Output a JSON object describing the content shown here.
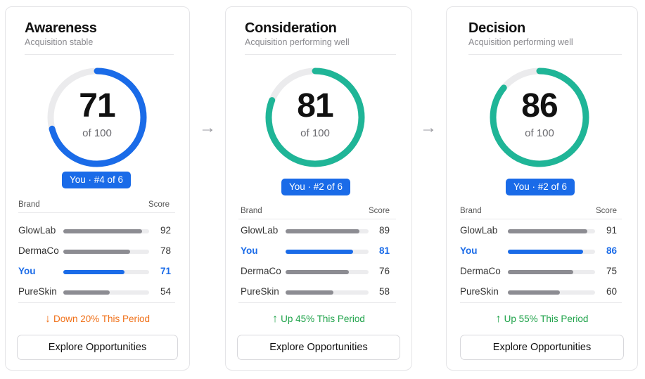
{
  "colors": {
    "accent_blue": "#1a6be8",
    "accent_teal": "#1fb597",
    "down": "#f07018",
    "up": "#1fa34a"
  },
  "columns": {
    "brand": "Brand",
    "score": "Score"
  },
  "stages": [
    {
      "title": "Awareness",
      "subtitle": "Acquisition stable",
      "score": "71",
      "score_value": 71,
      "out_of": "of 100",
      "rank": "You · #4 of 6",
      "rows": [
        {
          "brand": "GlowLab",
          "score": "92",
          "value": 92
        },
        {
          "brand": "DermaCo",
          "score": "78",
          "value": 78
        },
        {
          "brand": "You",
          "score": "71",
          "value": 71
        },
        {
          "brand": "PureSkin",
          "score": "54",
          "value": 54
        }
      ],
      "trend_arrow": "↓",
      "trend": "Down 20% This Period",
      "trend_dir": "down",
      "button": "Explore Opportunities"
    },
    {
      "title": "Consideration",
      "subtitle": "Acquisition performing well",
      "score": "81",
      "score_value": 81,
      "out_of": "of 100",
      "rank": "You · #2 of 6",
      "rows": [
        {
          "brand": "GlowLab",
          "score": "89",
          "value": 89
        },
        {
          "brand": "You",
          "score": "81",
          "value": 81
        },
        {
          "brand": "DermaCo",
          "score": "76",
          "value": 76
        },
        {
          "brand": "PureSkin",
          "score": "58",
          "value": 58
        }
      ],
      "trend_arrow": "↑",
      "trend": "Up 45% This Period",
      "trend_dir": "up",
      "button": "Explore Opportunities"
    },
    {
      "title": "Decision",
      "subtitle": "Acquisition performing well",
      "score": "86",
      "score_value": 86,
      "out_of": "of 100",
      "rank": "You · #2 of 6",
      "rows": [
        {
          "brand": "GlowLab",
          "score": "91",
          "value": 91
        },
        {
          "brand": "You",
          "score": "86",
          "value": 86
        },
        {
          "brand": "DermaCo",
          "score": "75",
          "value": 75
        },
        {
          "brand": "PureSkin",
          "score": "60",
          "value": 60
        }
      ],
      "trend_arrow": "↑",
      "trend": "Up 55% This Period",
      "trend_dir": "up",
      "button": "Explore Opportunities"
    }
  ],
  "flow_arrow": "→"
}
